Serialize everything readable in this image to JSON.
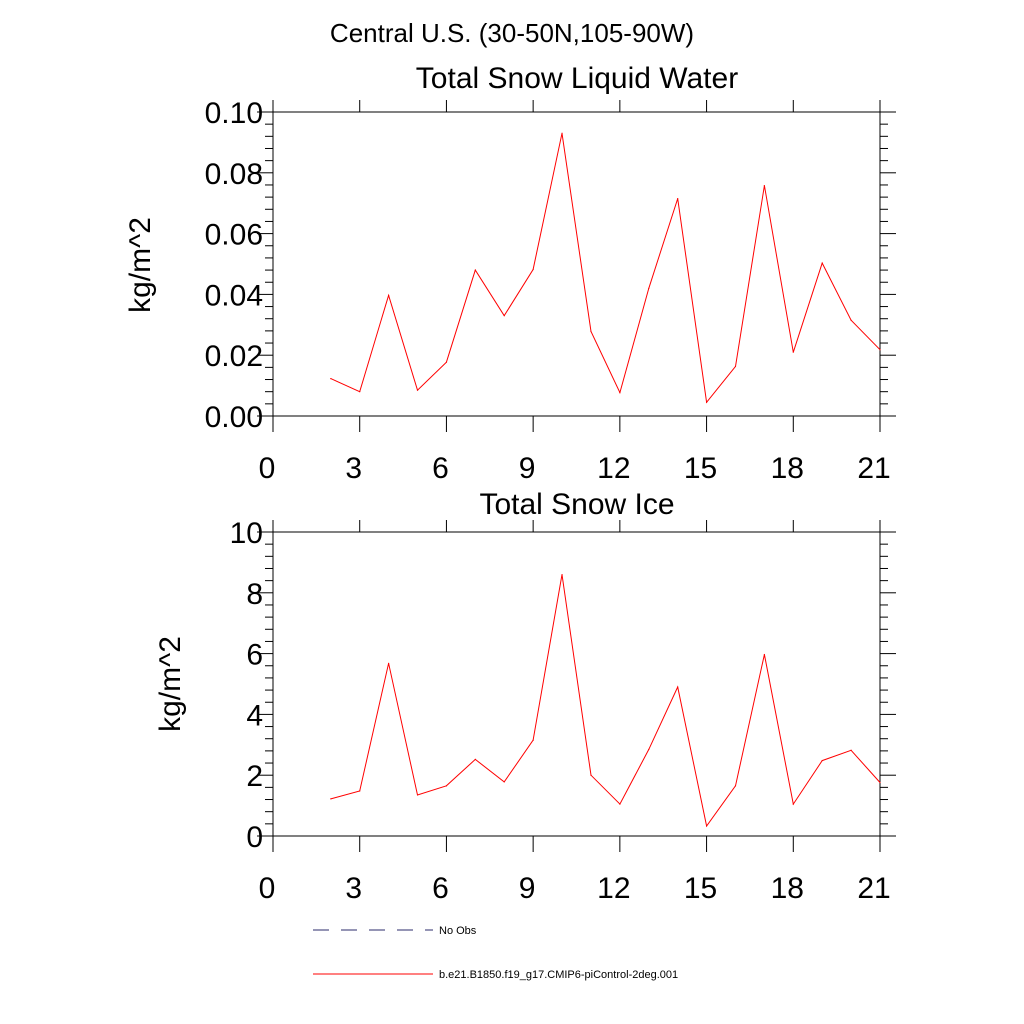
{
  "figure": {
    "suptitle": "Central U.S. (30-50N,105-90W)"
  },
  "colors": {
    "model_line": "#ff0000",
    "obs_line": "#2b2b6b",
    "axis": "#000000"
  },
  "chart_data": [
    {
      "type": "line",
      "title": "Total Snow Liquid Water",
      "xlabel": "",
      "ylabel": "kg/m^2",
      "xlim": [
        0,
        21
      ],
      "ylim": [
        0,
        0.1
      ],
      "xticks": [
        0,
        3,
        6,
        9,
        12,
        15,
        18,
        21
      ],
      "xtick_labels": [
        "0",
        "3",
        "6",
        "9",
        "12",
        "15",
        "18",
        "21"
      ],
      "yticks": [
        0,
        0.02,
        0.04,
        0.06,
        0.08,
        0.1
      ],
      "ytick_labels": [
        "0.00",
        "0.02",
        "0.04",
        "0.06",
        "0.08",
        "0.10"
      ],
      "x": [
        2,
        3,
        4,
        5,
        6,
        7,
        8,
        9,
        10,
        11,
        12,
        13,
        14,
        15,
        16,
        17,
        18,
        19,
        20,
        21
      ],
      "series": [
        {
          "name": "b.e21.B1850.f19_g17.CMIP6-piControl-2deg.001",
          "values": [
            0.0123,
            0.008,
            0.0397,
            0.0085,
            0.0177,
            0.048,
            0.033,
            0.0482,
            0.093,
            0.0278,
            0.0077,
            0.042,
            0.0715,
            0.0045,
            0.0163,
            0.0758,
            0.021,
            0.0503,
            0.0315,
            0.0218
          ]
        }
      ]
    },
    {
      "type": "line",
      "title": "Total Snow Ice",
      "xlabel": "",
      "ylabel": "kg/m^2",
      "xlim": [
        0,
        21
      ],
      "ylim": [
        0,
        10
      ],
      "xticks": [
        0,
        3,
        6,
        9,
        12,
        15,
        18,
        21
      ],
      "xtick_labels": [
        "0",
        "3",
        "6",
        "9",
        "12",
        "15",
        "18",
        "21"
      ],
      "yticks": [
        0,
        2,
        4,
        6,
        8,
        10
      ],
      "ytick_labels": [
        "0",
        "2",
        "4",
        "6",
        "8",
        "10"
      ],
      "x": [
        2,
        3,
        4,
        5,
        6,
        7,
        8,
        9,
        10,
        11,
        12,
        13,
        14,
        15,
        16,
        17,
        18,
        19,
        20,
        21
      ],
      "series": [
        {
          "name": "b.e21.B1850.f19_g17.CMIP6-piControl-2deg.001",
          "values": [
            1.22,
            1.48,
            5.68,
            1.35,
            1.65,
            2.52,
            1.78,
            3.15,
            8.6,
            2.0,
            1.05,
            2.85,
            4.9,
            0.33,
            1.65,
            5.97,
            1.05,
            2.48,
            2.82,
            1.76
          ]
        }
      ]
    }
  ],
  "legend": [
    {
      "label": "No Obs",
      "style": "dashed"
    },
    {
      "label": "b.e21.B1850.f19_g17.CMIP6-piControl-2deg.001",
      "style": "solid"
    }
  ]
}
